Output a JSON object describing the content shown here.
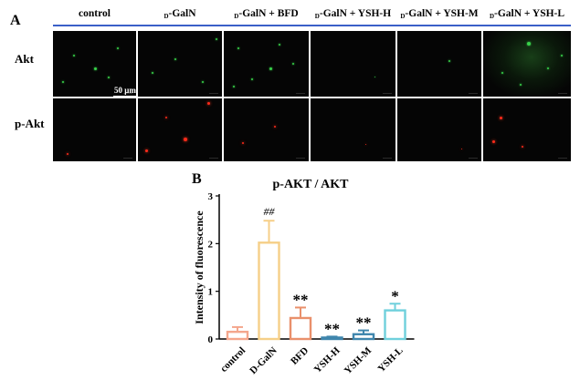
{
  "panel_a": {
    "label": "A",
    "columns": [
      {
        "prefix": "",
        "name": "control"
      },
      {
        "prefix": "D",
        "name": "-GalN"
      },
      {
        "prefix": "D",
        "name": "-GalN + BFD"
      },
      {
        "prefix": "D",
        "name": "-GalN + YSH-H"
      },
      {
        "prefix": "D",
        "name": "-GalN + YSH-M"
      },
      {
        "prefix": "D",
        "name": "-GalN + YSH-L"
      }
    ],
    "rows": [
      {
        "label": "Akt",
        "stain": "green"
      },
      {
        "label": "p-Akt",
        "stain": "red"
      }
    ],
    "scale_bar": "50 μm"
  },
  "panel_b": {
    "label": "B",
    "accent_colors": [
      "#f4a68c",
      "#f6cf88",
      "#e9906b",
      "#3f86ad",
      "#3f86ad",
      "#6fd0dc"
    ]
  },
  "chart_data": {
    "type": "bar",
    "title": "p-AKT / AKT",
    "xlabel": "",
    "ylabel": "Intensity of fluorescence",
    "categories": [
      "control",
      "D-GalN",
      "BFD",
      "YSH-H",
      "YSH-M",
      "YSH-L"
    ],
    "values": [
      0.15,
      2.02,
      0.44,
      0.03,
      0.1,
      0.6
    ],
    "errors": [
      0.1,
      0.46,
      0.22,
      0.02,
      0.08,
      0.14
    ],
    "annotations": [
      "",
      "##",
      "**",
      "**",
      "**",
      "*"
    ],
    "ylim": [
      0,
      3
    ],
    "yticks": [
      0,
      1,
      2,
      3
    ],
    "grid": false,
    "legend": "none"
  }
}
